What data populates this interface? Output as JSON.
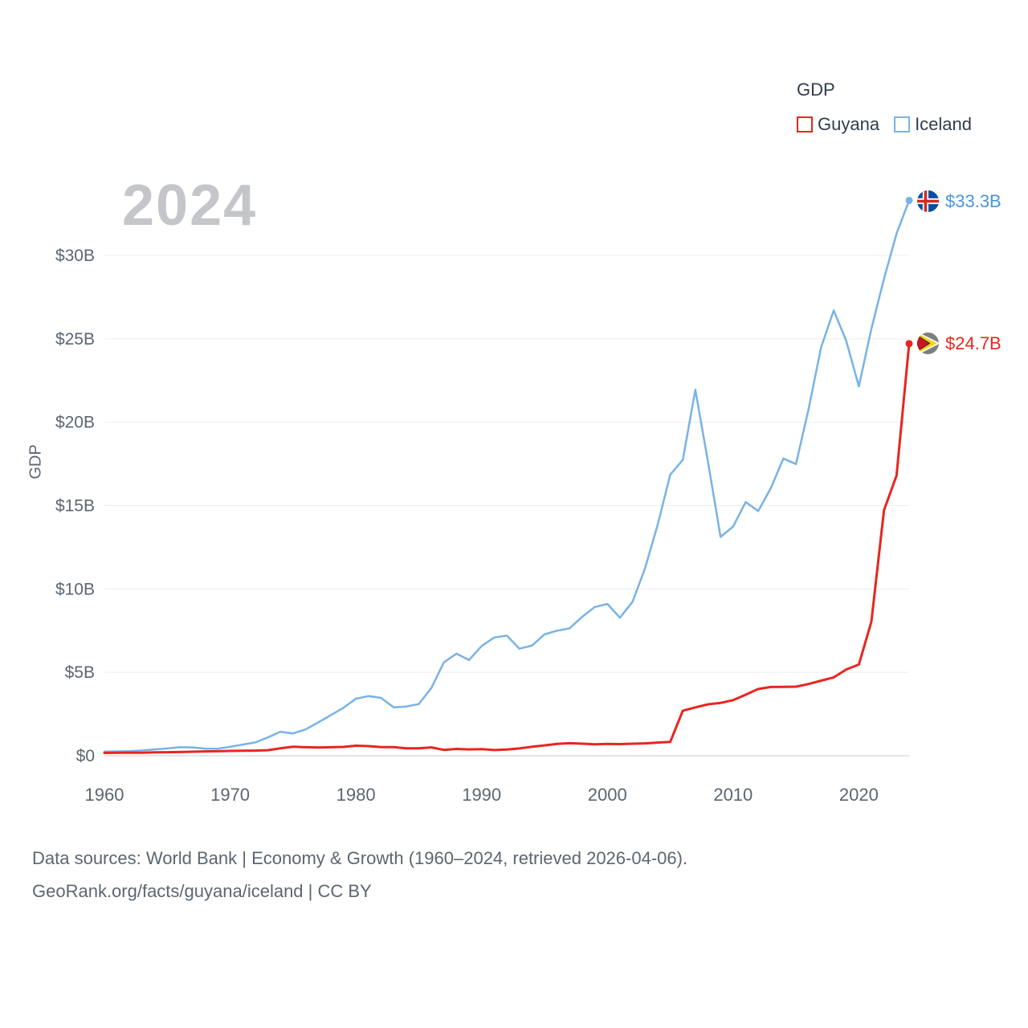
{
  "watermark": "2024",
  "legend": {
    "title": "GDP",
    "items": [
      {
        "label": "Guyana"
      },
      {
        "label": "Iceland"
      }
    ]
  },
  "y_axis_label": "GDP",
  "end_labels": [
    {
      "series": "Iceland",
      "text": "$33.3B",
      "color": "#4a94de"
    },
    {
      "series": "Guyana",
      "text": "$24.7B",
      "color": "#e8291c"
    }
  ],
  "footer": {
    "line1": "Data sources: World Bank | Economy & Growth (1960–2024, retrieved 2026-04-06).",
    "line2": "GeoRank.org/facts/guyana/iceland | CC BY"
  },
  "chart_data": {
    "type": "line",
    "title": "GDP",
    "xlabel": "",
    "ylabel": "GDP",
    "xlim": [
      1960,
      2024
    ],
    "ylim": [
      0,
      33.5
    ],
    "grid": true,
    "legend_position": "top-right",
    "x_ticks": [
      1960,
      1970,
      1980,
      1990,
      2000,
      2010,
      2020
    ],
    "y_ticks": [
      "$0",
      "$5B",
      "$10B",
      "$15B",
      "$20B",
      "$25B",
      "$30B"
    ],
    "y_tick_values": [
      0,
      5,
      10,
      15,
      20,
      25,
      30
    ],
    "x": [
      1960,
      1961,
      1962,
      1963,
      1964,
      1965,
      1966,
      1967,
      1968,
      1969,
      1970,
      1971,
      1972,
      1973,
      1974,
      1975,
      1976,
      1977,
      1978,
      1979,
      1980,
      1981,
      1982,
      1983,
      1984,
      1985,
      1986,
      1987,
      1988,
      1989,
      1990,
      1991,
      1992,
      1993,
      1994,
      1995,
      1996,
      1997,
      1998,
      1999,
      2000,
      2001,
      2002,
      2003,
      2004,
      2005,
      2006,
      2007,
      2008,
      2009,
      2010,
      2011,
      2012,
      2013,
      2014,
      2015,
      2016,
      2017,
      2018,
      2019,
      2020,
      2021,
      2022,
      2023,
      2024
    ],
    "series": [
      {
        "name": "Guyana",
        "color": "#e8251f",
        "end_label": "$24.7B",
        "values": [
          0.17,
          0.18,
          0.19,
          0.18,
          0.2,
          0.21,
          0.22,
          0.24,
          0.26,
          0.27,
          0.29,
          0.3,
          0.31,
          0.33,
          0.45,
          0.54,
          0.51,
          0.49,
          0.51,
          0.53,
          0.6,
          0.58,
          0.52,
          0.52,
          0.45,
          0.45,
          0.5,
          0.35,
          0.41,
          0.38,
          0.4,
          0.34,
          0.37,
          0.44,
          0.54,
          0.62,
          0.71,
          0.75,
          0.72,
          0.69,
          0.71,
          0.7,
          0.72,
          0.74,
          0.79,
          0.83,
          2.7,
          2.9,
          3.08,
          3.17,
          3.33,
          3.66,
          4.0,
          4.12,
          4.13,
          4.14,
          4.3,
          4.5,
          4.7,
          5.17,
          5.47,
          8.04,
          14.72,
          16.79,
          24.71
        ]
      },
      {
        "name": "Iceland",
        "color": "#78b3e6",
        "end_label": "$33.3B",
        "values": [
          0.25,
          0.26,
          0.28,
          0.32,
          0.38,
          0.44,
          0.51,
          0.5,
          0.43,
          0.42,
          0.54,
          0.67,
          0.8,
          1.1,
          1.44,
          1.34,
          1.58,
          2.0,
          2.43,
          2.87,
          3.42,
          3.58,
          3.47,
          2.9,
          2.95,
          3.1,
          4.06,
          5.6,
          6.12,
          5.74,
          6.58,
          7.09,
          7.21,
          6.42,
          6.6,
          7.28,
          7.5,
          7.64,
          8.33,
          8.92,
          9.1,
          8.28,
          9.23,
          11.25,
          13.85,
          16.85,
          17.74,
          21.95,
          17.63,
          13.12,
          13.74,
          15.21,
          14.67,
          16.05,
          17.82,
          17.49,
          20.79,
          24.49,
          26.7,
          24.87,
          22.15,
          25.6,
          28.6,
          31.3,
          33.3
        ]
      }
    ]
  }
}
